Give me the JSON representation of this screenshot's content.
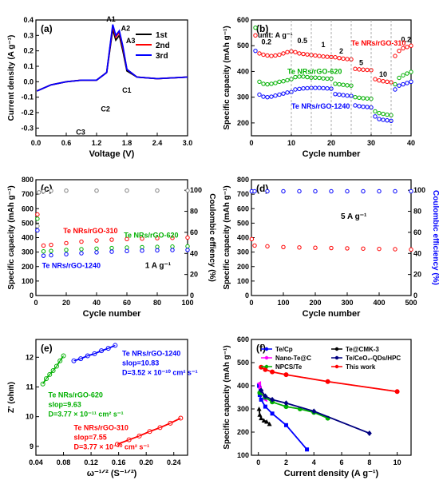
{
  "chart_data": [
    {
      "panel": "(a)",
      "type": "line",
      "xlabel": "Voltage (V)",
      "ylabel": "Current density (A g⁻¹)",
      "xlim": [
        0.0,
        3.0
      ],
      "ylim": [
        -0.35,
        0.4
      ],
      "xticks": [
        "0.0",
        "0.6",
        "1.2",
        "1.8",
        "2.4",
        "3.0"
      ],
      "yticks": [
        "-0.3",
        "-0.2",
        "-0.1",
        "0.0",
        "0.1",
        "0.2",
        "0.3",
        "0.4"
      ],
      "legend": [
        "1st",
        "2nd",
        "3rd"
      ],
      "colors": [
        "#000000",
        "#ff0000",
        "#0000ff"
      ],
      "annotations": [
        "A1",
        "A2",
        "A3",
        "C1",
        "C2",
        "C3"
      ],
      "series": [
        {
          "name": "1st",
          "x": [
            0.02,
            0.3,
            0.6,
            0.9,
            1.2,
            1.4,
            1.52,
            1.58,
            1.65,
            1.72,
            1.8,
            2.0,
            2.4,
            3.0
          ],
          "y": [
            -0.06,
            -0.02,
            0.0,
            0.01,
            0.01,
            0.06,
            0.34,
            0.27,
            0.3,
            0.2,
            0.07,
            0.03,
            0.02,
            0.03
          ]
        },
        {
          "name": "2nd",
          "x": [
            0.02,
            0.3,
            0.6,
            0.9,
            1.2,
            1.4,
            1.52,
            1.58,
            1.65,
            1.72,
            1.8,
            2.0,
            2.4,
            3.0
          ],
          "y": [
            -0.06,
            -0.02,
            0.0,
            0.01,
            0.01,
            0.06,
            0.36,
            0.29,
            0.32,
            0.22,
            0.08,
            0.03,
            0.02,
            0.03
          ]
        },
        {
          "name": "3rd",
          "x": [
            0.02,
            0.3,
            0.6,
            0.9,
            1.2,
            1.4,
            1.52,
            1.58,
            1.65,
            1.72,
            1.8,
            2.0,
            2.4,
            3.0
          ],
          "y": [
            -0.06,
            -0.02,
            0.0,
            0.01,
            0.01,
            0.06,
            0.37,
            0.3,
            0.33,
            0.23,
            0.08,
            0.03,
            0.02,
            0.03
          ]
        }
      ]
    },
    {
      "panel": "(b)",
      "type": "scatter",
      "xlabel": "Cycle number",
      "ylabel": "Specific capacity (mAh g⁻¹)",
      "xlim": [
        0,
        40
      ],
      "ylim": [
        150,
        600
      ],
      "xticks": [
        "0",
        "10",
        "20",
        "30",
        "40"
      ],
      "yticks": [
        "200",
        "300",
        "400",
        "500",
        "600"
      ],
      "unit_label": "unit: A g⁻¹",
      "rate_labels": [
        "0.2",
        "0.5",
        "1",
        "2",
        "5",
        "10",
        "0.2"
      ],
      "series": [
        {
          "name": "Te NRs/rGO-310",
          "color": "#ff0000",
          "x": [
            1,
            2,
            3,
            4,
            5,
            6,
            7,
            8,
            9,
            10,
            11,
            12,
            13,
            14,
            15,
            16,
            17,
            18,
            19,
            20,
            21,
            22,
            23,
            24,
            25,
            26,
            27,
            28,
            29,
            30,
            31,
            32,
            33,
            34,
            35,
            36,
            37,
            38,
            39,
            40
          ],
          "y": [
            540,
            470,
            465,
            462,
            460,
            462,
            465,
            470,
            475,
            478,
            475,
            470,
            468,
            466,
            464,
            462,
            460,
            458,
            457,
            456,
            455,
            452,
            450,
            448,
            447,
            410,
            408,
            407,
            406,
            405,
            370,
            365,
            362,
            360,
            358,
            460,
            480,
            490,
            495,
            500
          ]
        },
        {
          "name": "Te NRs/rGO-620",
          "color": "#00b000",
          "x": [
            1,
            2,
            3,
            4,
            5,
            6,
            7,
            8,
            9,
            10,
            11,
            12,
            13,
            14,
            15,
            16,
            17,
            18,
            19,
            20,
            21,
            22,
            23,
            24,
            25,
            26,
            27,
            28,
            29,
            30,
            31,
            32,
            33,
            34,
            35,
            36,
            37,
            38,
            39,
            40
          ],
          "y": [
            570,
            360,
            352,
            350,
            352,
            355,
            360,
            362,
            366,
            370,
            378,
            380,
            380,
            378,
            376,
            376,
            375,
            373,
            372,
            372,
            352,
            350,
            348,
            346,
            345,
            300,
            298,
            296,
            295,
            294,
            245,
            238,
            235,
            232,
            230,
            350,
            375,
            385,
            392,
            398
          ]
        },
        {
          "name": "Te NRs/rGO-1240",
          "color": "#0000ff",
          "x": [
            1,
            2,
            3,
            4,
            5,
            6,
            7,
            8,
            9,
            10,
            11,
            12,
            13,
            14,
            15,
            16,
            17,
            18,
            19,
            20,
            21,
            22,
            23,
            24,
            25,
            26,
            27,
            28,
            29,
            30,
            31,
            32,
            33,
            34,
            35,
            36,
            37,
            38,
            39,
            40
          ],
          "y": [
            480,
            310,
            302,
            300,
            302,
            306,
            310,
            314,
            318,
            320,
            330,
            332,
            334,
            335,
            336,
            336,
            336,
            335,
            334,
            333,
            312,
            310,
            308,
            306,
            305,
            268,
            265,
            263,
            262,
            260,
            225,
            215,
            212,
            210,
            208,
            330,
            345,
            350,
            355,
            360
          ]
        }
      ]
    },
    {
      "panel": "(c)",
      "type": "scatter",
      "xlabel": "Cycle number",
      "ylabel": "Specific capacity (mAh g⁻¹)",
      "y2label": "Coulombic effiency (%)",
      "xlim": [
        0,
        100
      ],
      "ylim": [
        0,
        800
      ],
      "y2lim": [
        0,
        110
      ],
      "xticks": [
        "0",
        "20",
        "40",
        "60",
        "80",
        "100"
      ],
      "yticks": [
        "0",
        "100",
        "200",
        "300",
        "400",
        "500",
        "600",
        "700",
        "800"
      ],
      "y2ticks": [
        "0",
        "20",
        "40",
        "60",
        "80",
        "100"
      ],
      "rate_label": "1 A g⁻¹",
      "series": [
        {
          "name": "Te NRs/rGO-310",
          "color": "#ff0000",
          "x": [
            1,
            5,
            10,
            20,
            30,
            40,
            50,
            60,
            70,
            80,
            90,
            100
          ],
          "y": [
            560,
            345,
            350,
            362,
            372,
            380,
            386,
            390,
            393,
            396,
            398,
            400
          ]
        },
        {
          "name": "Te NRs/rGO-620",
          "color": "#00b000",
          "x": [
            1,
            5,
            10,
            20,
            30,
            40,
            50,
            60,
            70,
            80,
            90,
            100
          ],
          "y": [
            530,
            305,
            308,
            315,
            320,
            324,
            328,
            331,
            334,
            336,
            338,
            340
          ]
        },
        {
          "name": "Te NRs/rGO-1240",
          "color": "#0000ff",
          "x": [
            1,
            5,
            10,
            20,
            30,
            40,
            50,
            60,
            70,
            80,
            90,
            100
          ],
          "y": [
            450,
            275,
            278,
            285,
            292,
            298,
            303,
            307,
            310,
            312,
            314,
            315
          ]
        },
        {
          "name": "Coulombic efficiency",
          "color": "#808080",
          "axis": "y2",
          "x": [
            1,
            2,
            5,
            10,
            20,
            40,
            60,
            80,
            100
          ],
          "y": [
            66,
            98,
            99,
            99.5,
            99.6,
            99.6,
            99.7,
            99.7,
            99.7
          ]
        }
      ]
    },
    {
      "panel": "(d)",
      "type": "scatter",
      "xlabel": "Cycle number",
      "ylabel": "Specific capacity (mAh g⁻¹)",
      "y2label": "Coulombic efficiency (%)",
      "xlim": [
        0,
        500
      ],
      "ylim": [
        0,
        800
      ],
      "y2lim": [
        0,
        110
      ],
      "xticks": [
        "0",
        "100",
        "200",
        "300",
        "400",
        "500"
      ],
      "yticks": [
        "0",
        "100",
        "200",
        "300",
        "400",
        "500",
        "600",
        "700",
        "800"
      ],
      "y2ticks": [
        "0",
        "20",
        "40",
        "60",
        "80",
        "100"
      ],
      "rate_label": "5 A g⁻¹",
      "series": [
        {
          "name": "capacity",
          "color": "#ff0000",
          "x": [
            1,
            10,
            50,
            100,
            150,
            200,
            250,
            300,
            350,
            400,
            450,
            500
          ],
          "y": [
            390,
            345,
            340,
            335,
            332,
            330,
            328,
            326,
            324,
            322,
            320,
            318
          ]
        },
        {
          "name": "Coulombic efficiency",
          "color": "#0000ff",
          "axis": "y2",
          "x": [
            1,
            10,
            50,
            100,
            150,
            200,
            250,
            300,
            350,
            400,
            450,
            500
          ],
          "y": [
            99,
            99,
            99,
            99,
            99,
            99,
            99,
            99,
            99,
            99,
            99,
            99
          ]
        }
      ]
    },
    {
      "panel": "(e)",
      "type": "line",
      "xlabel": "ω⁻¹ᐟ² (S⁻¹ᐟ²)",
      "ylabel": "Z' (ohm)",
      "xlim": [
        0.04,
        0.26
      ],
      "ylim": [
        8.7,
        12.6
      ],
      "xticks": [
        "0.04",
        "0.08",
        "0.12",
        "0.16",
        "0.20",
        "0.24"
      ],
      "yticks": [
        "9",
        "10",
        "11",
        "12"
      ],
      "annotations": [
        {
          "text": [
            "Te NRs/rGO-1240",
            "slop=10.83",
            "D=3.52 × 10⁻¹⁰ cm² s⁻¹"
          ],
          "color": "#0000ff"
        },
        {
          "text": [
            "Te NRs/rGO-620",
            "slop=9.63",
            "D=3.77 × 10⁻¹¹ cm² s⁻¹"
          ],
          "color": "#00b000"
        },
        {
          "text": [
            "Te NRs/rGO-310",
            "slop=7.55",
            "D=3.77 × 10⁻¹⁰ cm² s⁻¹"
          ],
          "color": "#ff0000"
        }
      ],
      "series": [
        {
          "name": "Te NRs/rGO-1240",
          "color": "#0000ff",
          "x": [
            0.095,
            0.105,
            0.115,
            0.125,
            0.135,
            0.145,
            0.155
          ],
          "y": [
            11.88,
            11.95,
            12.05,
            12.12,
            12.22,
            12.3,
            12.4
          ]
        },
        {
          "name": "Te NRs/rGO-620",
          "color": "#00b000",
          "x": [
            0.05,
            0.055,
            0.06,
            0.065,
            0.07,
            0.075,
            0.08
          ],
          "y": [
            11.1,
            11.28,
            11.42,
            11.55,
            11.7,
            11.88,
            12.05
          ]
        },
        {
          "name": "Te NRs/rGO-310",
          "color": "#ff0000",
          "x": [
            0.158,
            0.175,
            0.19,
            0.205,
            0.22,
            0.235,
            0.25
          ],
          "y": [
            9.07,
            9.22,
            9.35,
            9.5,
            9.63,
            9.78,
            9.95
          ]
        }
      ]
    },
    {
      "panel": "(f)",
      "type": "line",
      "xlabel": "Current density (A g⁻¹)",
      "ylabel": "Specific capacity (mAh g⁻¹)",
      "xlim": [
        -0.5,
        11
      ],
      "ylim": [
        100,
        600
      ],
      "xticks": [
        "0",
        "2",
        "4",
        "6",
        "8",
        "10"
      ],
      "yticks": [
        "100",
        "200",
        "300",
        "400",
        "500",
        "600"
      ],
      "series": [
        {
          "name": "Te/Cp",
          "color": "#0000ff",
          "marker": "square",
          "x": [
            0.05,
            0.1,
            0.2,
            0.5,
            1,
            2,
            3.5
          ],
          "y": [
            400,
            360,
            340,
            310,
            280,
            230,
            125
          ]
        },
        {
          "name": "Nano-Te@C",
          "color": "#ff00ff",
          "marker": "triangle-left",
          "x": [
            0.05,
            0.1,
            0.2,
            0.5
          ],
          "y": [
            410,
            390,
            370,
            340
          ]
        },
        {
          "name": "NPCS/Te",
          "color": "#00b000",
          "marker": "circle",
          "x": [
            0.1,
            0.5,
            1,
            2,
            3,
            4,
            5
          ],
          "y": [
            370,
            350,
            330,
            310,
            300,
            285,
            260
          ]
        },
        {
          "name": "Te@CMK-3",
          "color": "#000000",
          "marker": "triangle",
          "x": [
            0.05,
            0.1,
            0.2,
            0.4,
            0.6,
            0.8
          ],
          "y": [
            300,
            275,
            260,
            250,
            245,
            235
          ]
        },
        {
          "name": "Te/CeO₂-QDs/HPC",
          "color": "#000080",
          "marker": "diamond",
          "x": [
            0.2,
            0.5,
            1,
            2,
            4,
            8
          ],
          "y": [
            380,
            355,
            340,
            325,
            290,
            195
          ]
        },
        {
          "name": "This work",
          "color": "#ff0000",
          "marker": "circle",
          "x": [
            0.2,
            0.5,
            1,
            2,
            5,
            10
          ],
          "y": [
            480,
            470,
            460,
            448,
            418,
            375
          ]
        }
      ]
    }
  ]
}
